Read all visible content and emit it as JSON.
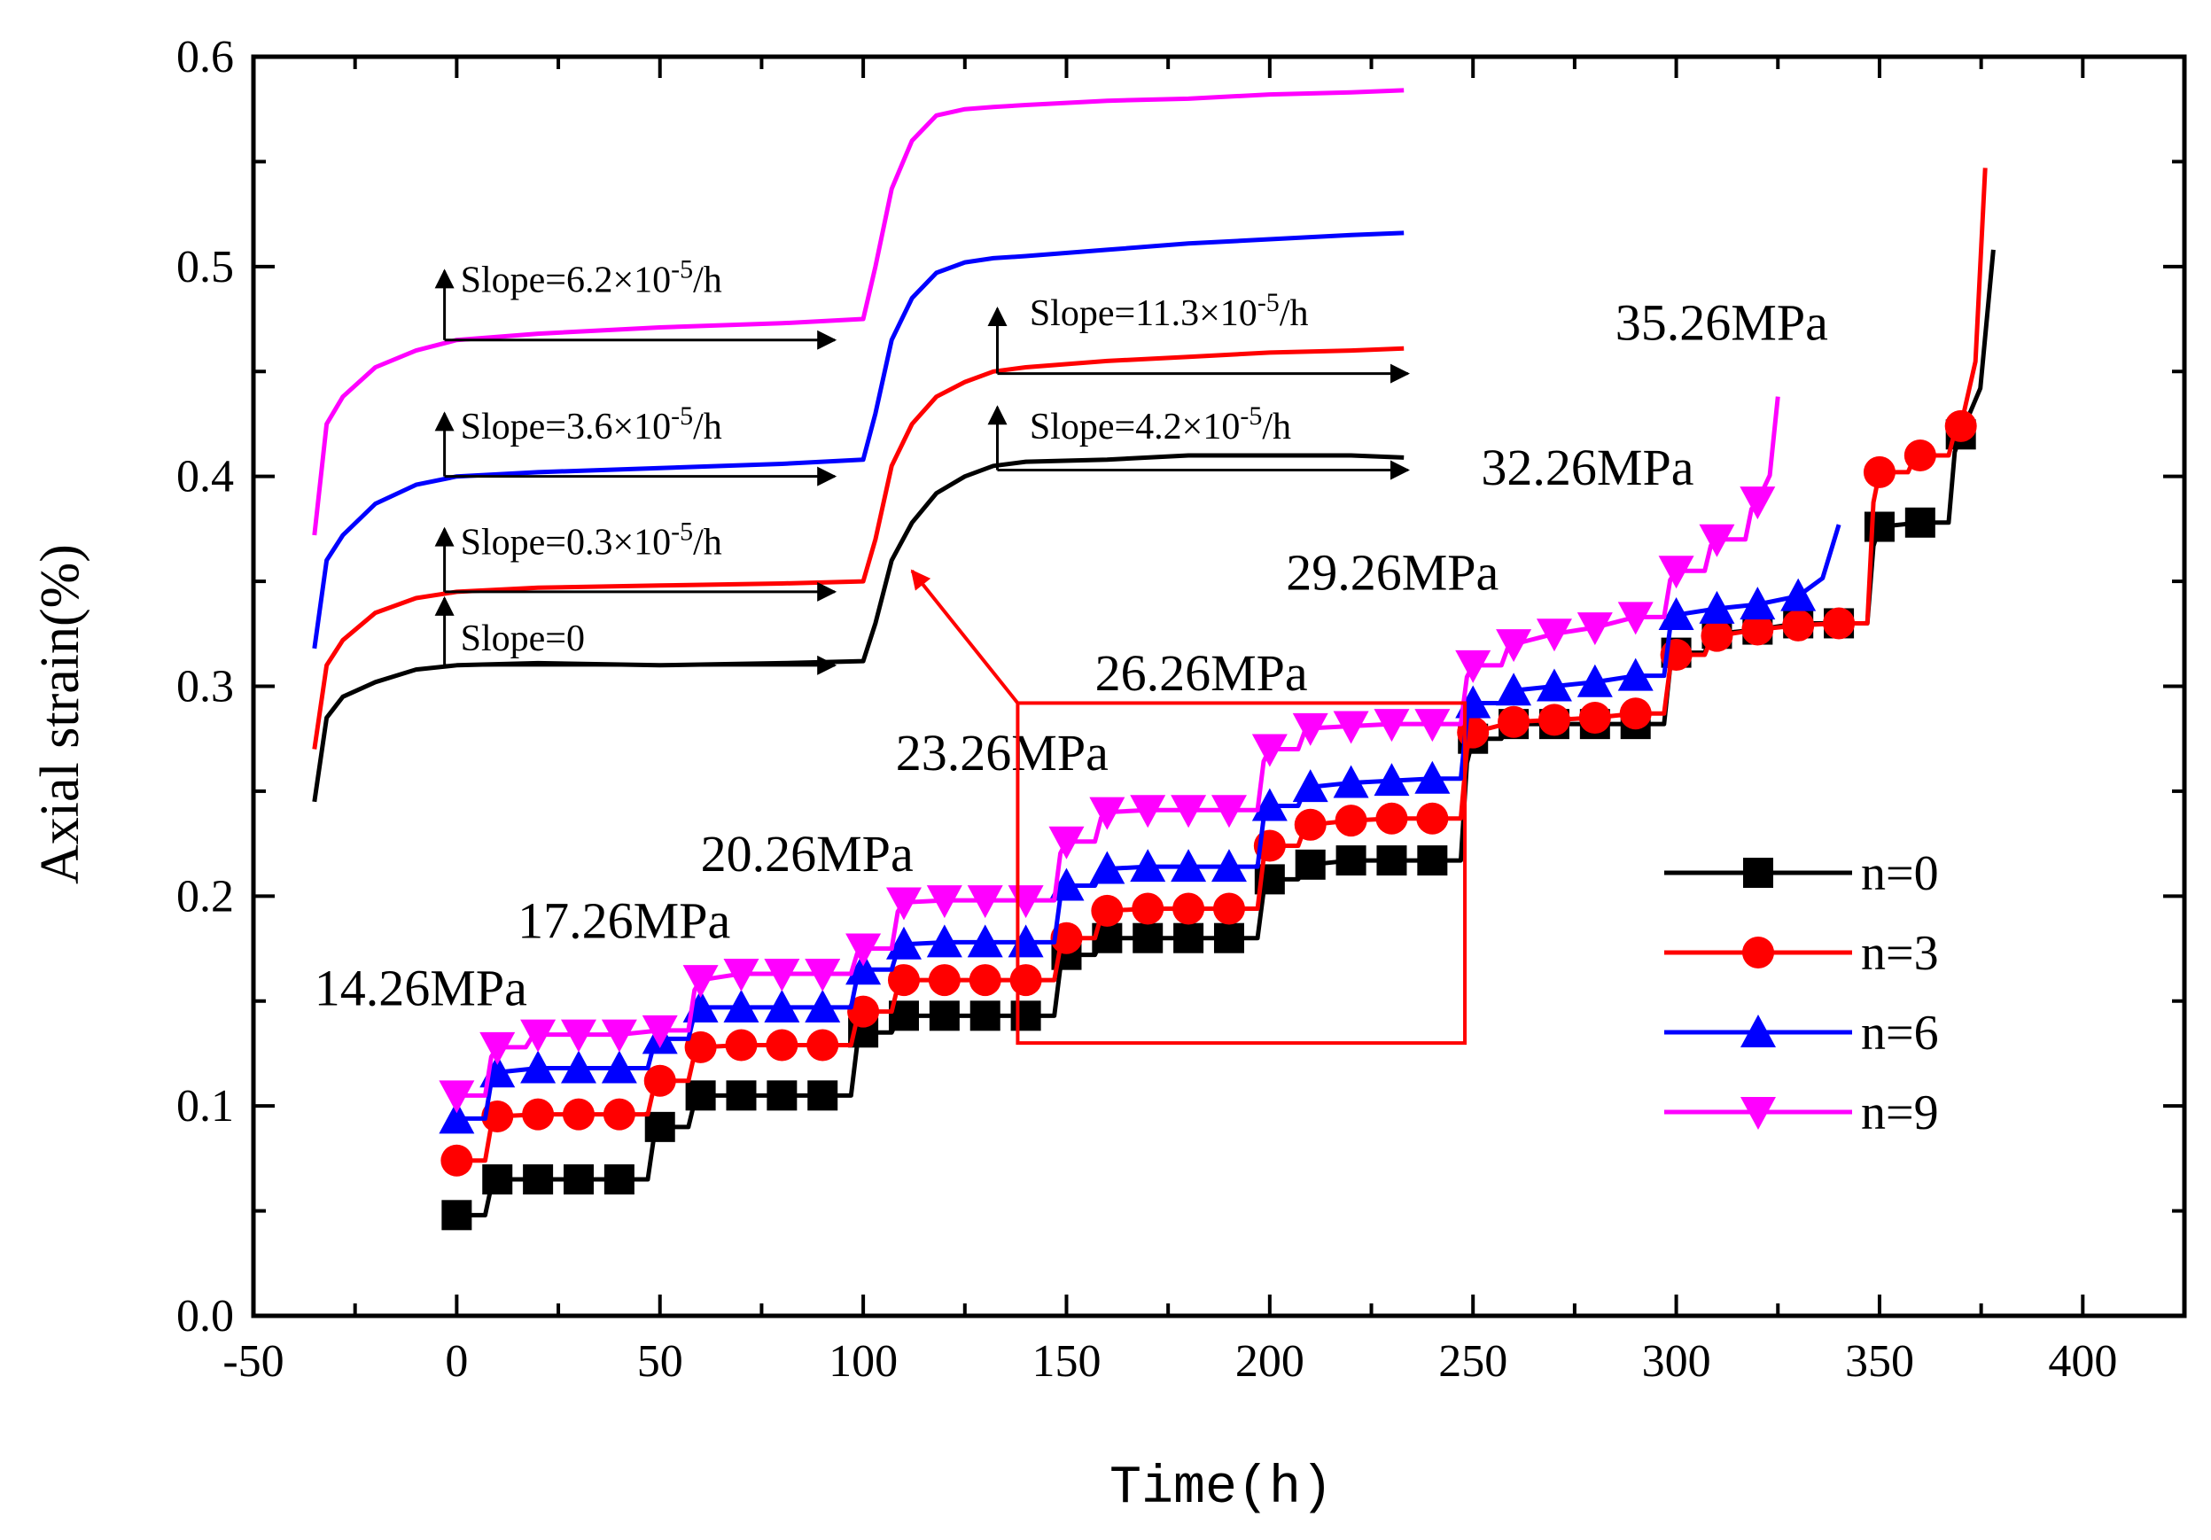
{
  "chart_data": {
    "type": "line",
    "xlabel": "Time(h)",
    "ylabel": "Axial strain(%)",
    "xlim": [
      -50,
      425
    ],
    "ylim": [
      0.0,
      0.6
    ],
    "x_ticks": [
      -50,
      0,
      50,
      100,
      150,
      200,
      250,
      300,
      350,
      400
    ],
    "y_ticks": [
      0.0,
      0.1,
      0.2,
      0.3,
      0.4,
      0.5,
      0.6
    ],
    "x_tick_labels": [
      "-50",
      "0",
      "50",
      "100",
      "150",
      "200",
      "250",
      "300",
      "350",
      "400"
    ],
    "y_tick_labels": [
      "0.0",
      "0.1",
      "0.2",
      "0.3",
      "0.4",
      "0.5",
      "0.6"
    ],
    "grid": false,
    "legend_position": "bottom-right",
    "stress_labels": [
      {
        "text": "14.26MPa",
        "x": -35,
        "y": 0.148
      },
      {
        "text": "17.26MPa",
        "x": 15,
        "y": 0.18
      },
      {
        "text": "20.26MPa",
        "x": 60,
        "y": 0.212
      },
      {
        "text": "23.26MPa",
        "x": 108,
        "y": 0.26
      },
      {
        "text": "26.26MPa",
        "x": 157,
        "y": 0.298
      },
      {
        "text": "29.26MPa",
        "x": 204,
        "y": 0.346
      },
      {
        "text": "32.26MPa",
        "x": 252,
        "y": 0.396
      },
      {
        "text": "35.26MPa",
        "x": 285,
        "y": 0.465
      }
    ],
    "slope_labels": [
      {
        "text": "Slope=6.2×10",
        "exp": "-5",
        "unit": "/h",
        "x": -3,
        "y": 0.488
      },
      {
        "text": "Slope=3.6×10",
        "exp": "-5",
        "unit": "/h",
        "x": -3,
        "y": 0.418
      },
      {
        "text": "Slope=0.3×10",
        "exp": "-5",
        "unit": "/h",
        "x": -3,
        "y": 0.363
      },
      {
        "text": "Slope=0",
        "exp": "",
        "unit": "",
        "x": -3,
        "y": 0.317
      },
      {
        "text": "Slope=11.3×10",
        "exp": "-5",
        "unit": "/h",
        "x": 137,
        "y": 0.472
      },
      {
        "text": "Slope=4.2×10",
        "exp": "-5",
        "unit": "/h",
        "x": 137,
        "y": 0.418
      }
    ],
    "series": [
      {
        "name": "n=0",
        "color": "#000000",
        "marker": "square",
        "x": [
          0,
          10,
          20,
          30,
          40,
          50,
          60,
          70,
          80,
          90,
          100,
          110,
          120,
          130,
          140,
          150,
          160,
          170,
          180,
          190,
          200,
          210,
          220,
          230,
          240,
          250,
          260,
          270,
          280,
          290,
          300,
          310,
          320,
          330,
          340,
          350,
          360,
          370
        ],
        "y": [
          0.048,
          0.065,
          0.065,
          0.065,
          0.065,
          0.09,
          0.105,
          0.105,
          0.105,
          0.105,
          0.135,
          0.143,
          0.143,
          0.143,
          0.143,
          0.172,
          0.18,
          0.18,
          0.18,
          0.18,
          0.208,
          0.215,
          0.217,
          0.217,
          0.217,
          0.275,
          0.282,
          0.282,
          0.282,
          0.282,
          0.316,
          0.325,
          0.327,
          0.33,
          0.33,
          0.376,
          0.378,
          0.42
        ],
        "end_x": 378,
        "end_y": 0.508
      },
      {
        "name": "n=3",
        "color": "#ff0000",
        "marker": "circle",
        "x": [
          0,
          10,
          20,
          30,
          40,
          50,
          60,
          70,
          80,
          90,
          100,
          110,
          120,
          130,
          140,
          150,
          160,
          170,
          180,
          190,
          200,
          210,
          220,
          230,
          240,
          250,
          260,
          270,
          280,
          290,
          300,
          310,
          320,
          330,
          340,
          350,
          360,
          370
        ],
        "y": [
          0.074,
          0.095,
          0.096,
          0.096,
          0.096,
          0.112,
          0.128,
          0.129,
          0.129,
          0.129,
          0.145,
          0.16,
          0.16,
          0.16,
          0.16,
          0.18,
          0.193,
          0.194,
          0.194,
          0.194,
          0.224,
          0.234,
          0.236,
          0.237,
          0.237,
          0.278,
          0.283,
          0.284,
          0.285,
          0.287,
          0.315,
          0.324,
          0.327,
          0.329,
          0.33,
          0.402,
          0.41,
          0.424
        ],
        "end_x": 376,
        "end_y": 0.547
      },
      {
        "name": "n=6",
        "color": "#0000ff",
        "marker": "triangle-up",
        "x": [
          0,
          10,
          20,
          30,
          40,
          50,
          60,
          70,
          80,
          90,
          100,
          110,
          120,
          130,
          140,
          150,
          160,
          170,
          180,
          190,
          200,
          210,
          220,
          230,
          240,
          250,
          260,
          270,
          280,
          290,
          300,
          310,
          320,
          330
        ],
        "y": [
          0.094,
          0.116,
          0.118,
          0.118,
          0.118,
          0.132,
          0.147,
          0.147,
          0.147,
          0.147,
          0.165,
          0.177,
          0.178,
          0.178,
          0.178,
          0.205,
          0.213,
          0.214,
          0.214,
          0.214,
          0.243,
          0.252,
          0.254,
          0.255,
          0.256,
          0.292,
          0.298,
          0.3,
          0.302,
          0.305,
          0.334,
          0.337,
          0.339,
          0.343
        ],
        "end_x": 340,
        "end_y": 0.377
      },
      {
        "name": "n=9",
        "color": "#ff00ff",
        "marker": "triangle-down",
        "x": [
          0,
          10,
          20,
          30,
          40,
          50,
          60,
          70,
          80,
          90,
          100,
          110,
          120,
          130,
          140,
          150,
          160,
          170,
          180,
          190,
          200,
          210,
          220,
          230,
          240,
          250,
          260,
          270,
          280,
          290,
          300,
          310,
          320
        ],
        "y": [
          0.105,
          0.128,
          0.134,
          0.134,
          0.134,
          0.136,
          0.16,
          0.163,
          0.163,
          0.163,
          0.175,
          0.197,
          0.198,
          0.198,
          0.198,
          0.226,
          0.24,
          0.241,
          0.241,
          0.241,
          0.27,
          0.28,
          0.281,
          0.282,
          0.282,
          0.31,
          0.32,
          0.325,
          0.328,
          0.333,
          0.355,
          0.37,
          0.388
        ],
        "end_x": 325,
        "end_y": 0.438
      }
    ],
    "inset_series": [
      {
        "name": "n=0",
        "color": "#000000",
        "x": [
          -35,
          -32,
          -28,
          -20,
          -10,
          0,
          20,
          50,
          80,
          100,
          103,
          107,
          112,
          118,
          125,
          132,
          140,
          160,
          180,
          200,
          220,
          233
        ],
        "y": [
          0.245,
          0.285,
          0.295,
          0.302,
          0.308,
          0.31,
          0.311,
          0.31,
          0.311,
          0.312,
          0.33,
          0.36,
          0.378,
          0.392,
          0.4,
          0.405,
          0.407,
          0.408,
          0.41,
          0.41,
          0.41,
          0.409
        ]
      },
      {
        "name": "n=3",
        "color": "#ff0000",
        "x": [
          -35,
          -32,
          -28,
          -20,
          -10,
          0,
          20,
          50,
          80,
          100,
          103,
          107,
          112,
          118,
          125,
          132,
          140,
          160,
          180,
          200,
          220,
          233
        ],
        "y": [
          0.27,
          0.31,
          0.322,
          0.335,
          0.342,
          0.345,
          0.347,
          0.348,
          0.349,
          0.35,
          0.37,
          0.405,
          0.425,
          0.438,
          0.445,
          0.45,
          0.452,
          0.455,
          0.457,
          0.459,
          0.46,
          0.461
        ]
      },
      {
        "name": "n=6",
        "color": "#0000ff",
        "x": [
          -35,
          -32,
          -28,
          -20,
          -10,
          0,
          20,
          50,
          80,
          100,
          103,
          107,
          112,
          118,
          125,
          132,
          140,
          160,
          180,
          200,
          220,
          233
        ],
        "y": [
          0.318,
          0.36,
          0.372,
          0.387,
          0.396,
          0.4,
          0.402,
          0.404,
          0.406,
          0.408,
          0.43,
          0.465,
          0.485,
          0.497,
          0.502,
          0.504,
          0.505,
          0.508,
          0.511,
          0.513,
          0.515,
          0.516
        ]
      },
      {
        "name": "n=9",
        "color": "#ff00ff",
        "x": [
          -35,
          -32,
          -28,
          -20,
          -10,
          0,
          20,
          50,
          80,
          100,
          103,
          107,
          112,
          118,
          125,
          132,
          140,
          160,
          180,
          200,
          220,
          233
        ],
        "y": [
          0.372,
          0.425,
          0.438,
          0.452,
          0.46,
          0.465,
          0.468,
          0.471,
          0.473,
          0.475,
          0.5,
          0.537,
          0.56,
          0.572,
          0.575,
          0.576,
          0.577,
          0.579,
          0.58,
          0.582,
          0.583,
          0.584
        ]
      }
    ]
  }
}
